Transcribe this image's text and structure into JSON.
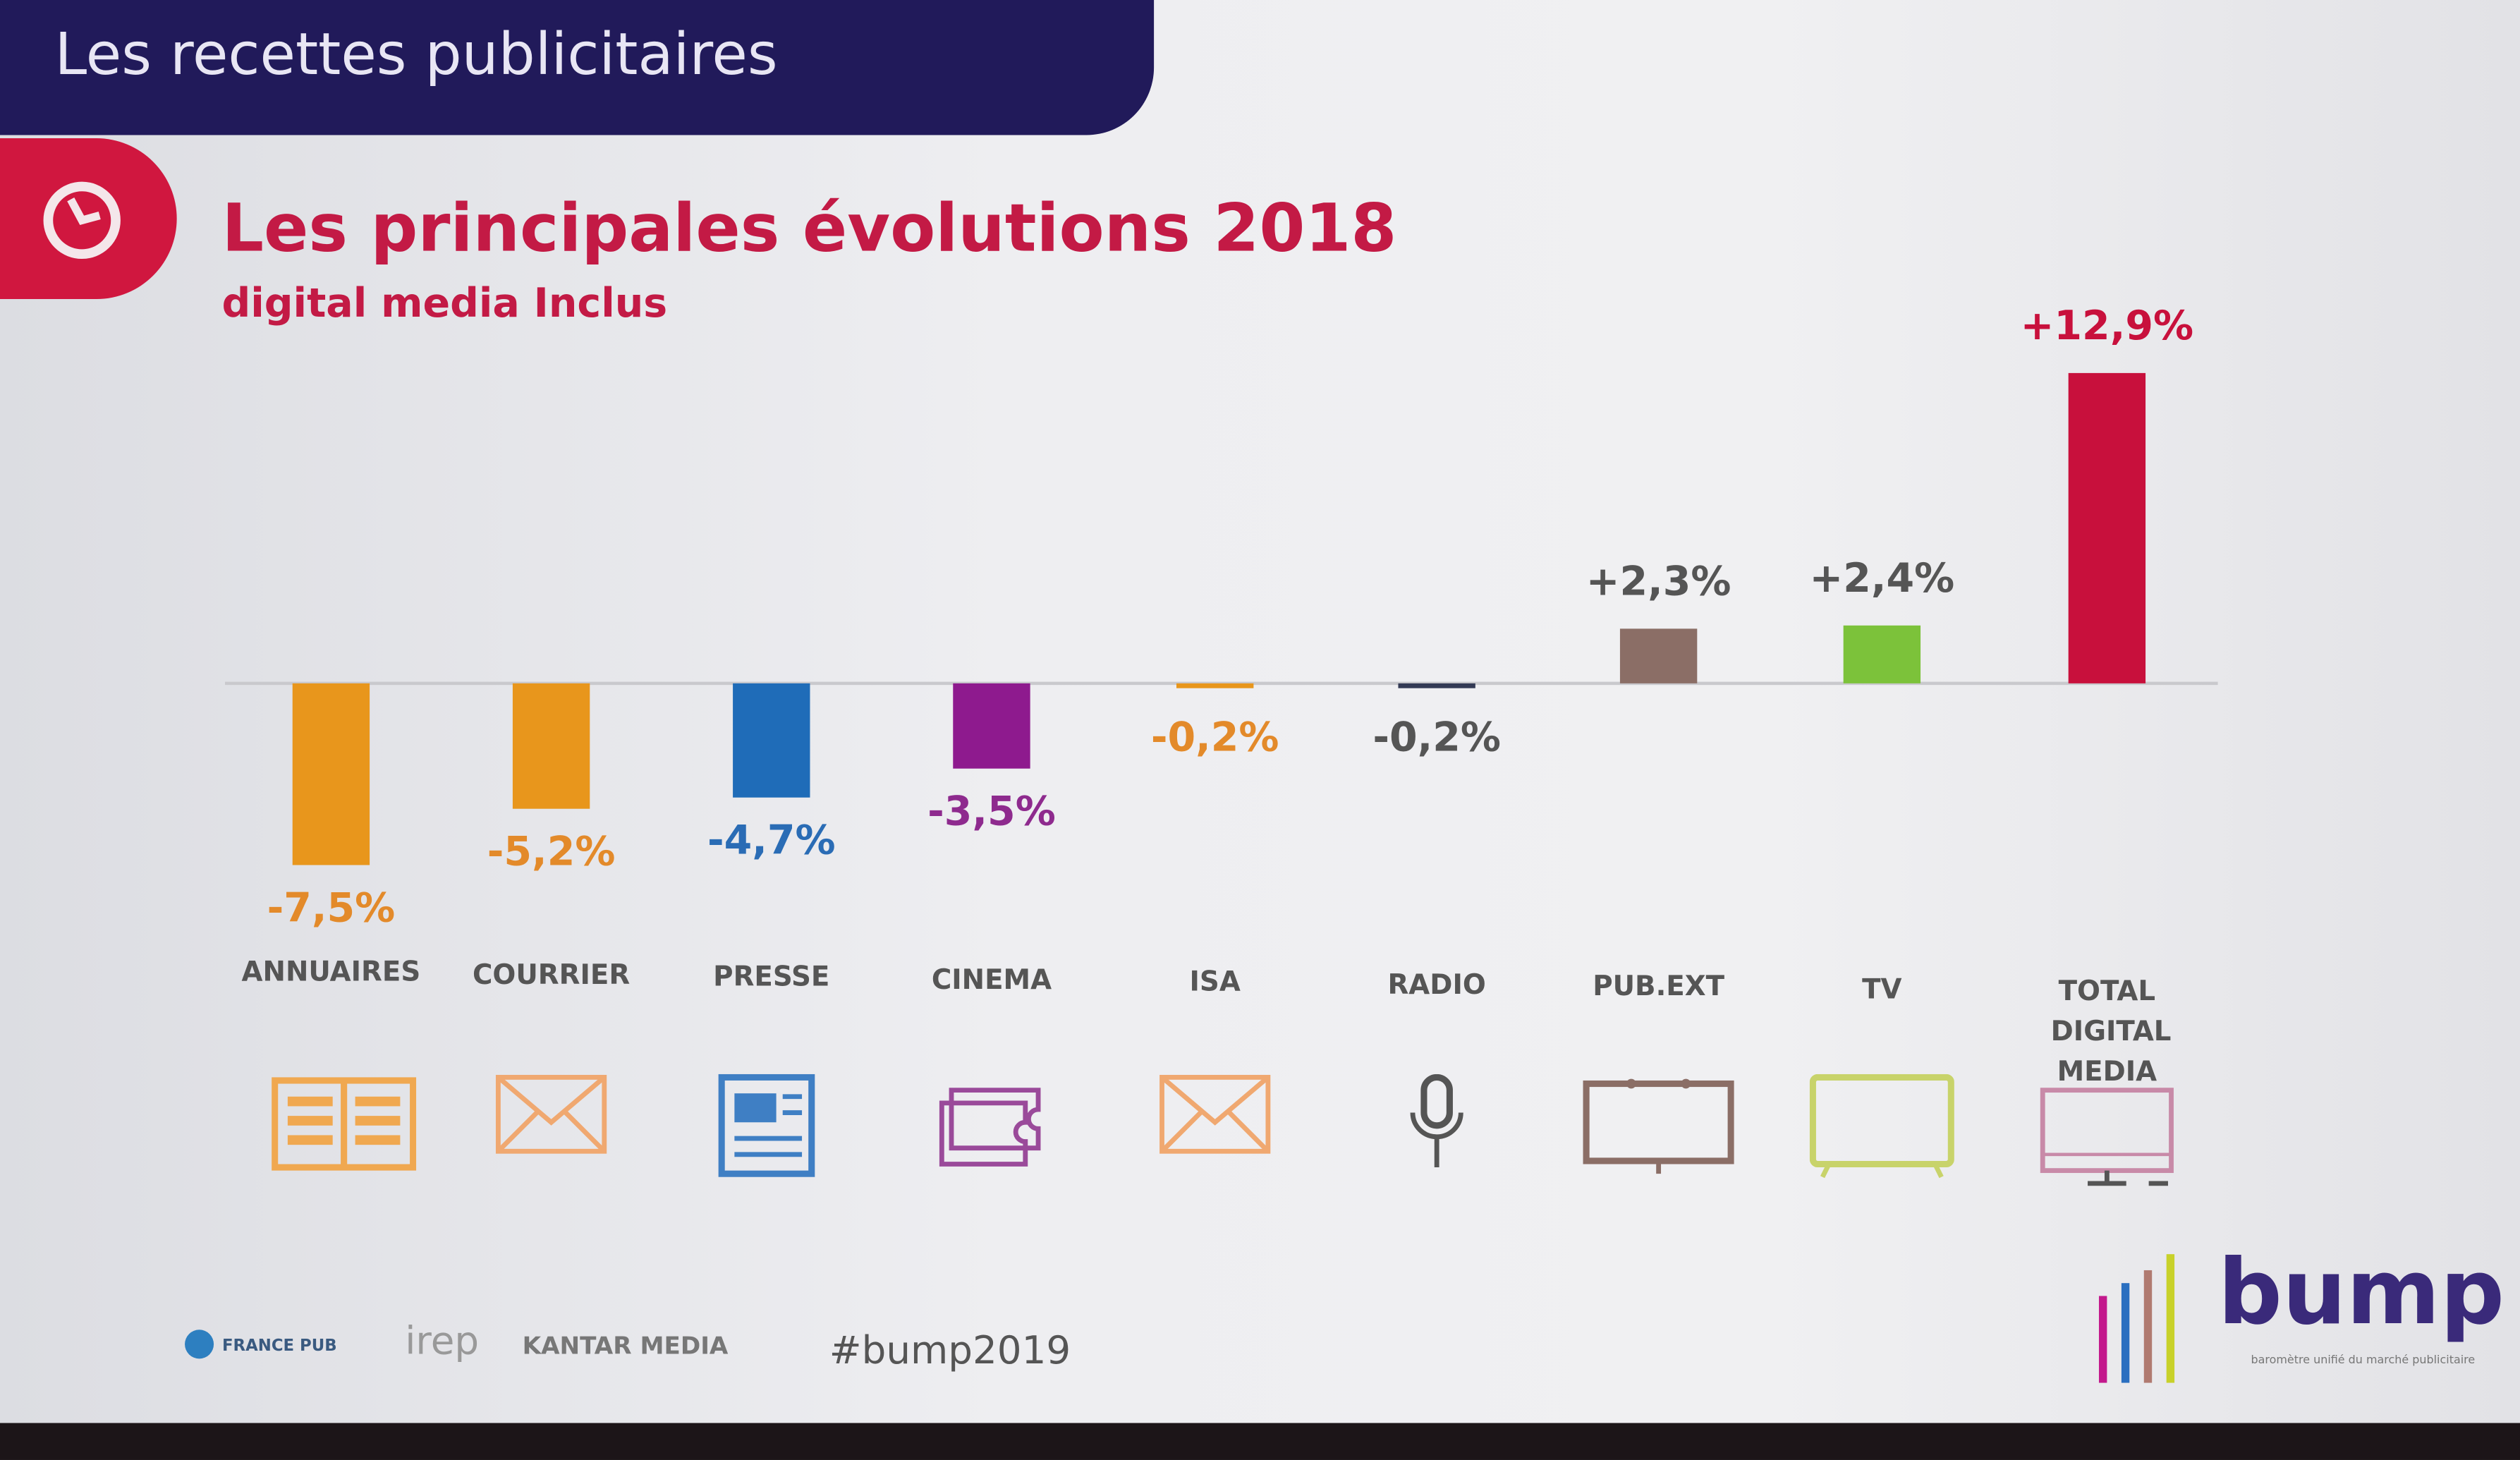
{
  "header": {
    "section": "Les recettes publicitaires",
    "icon": "clock-icon"
  },
  "chart_data": {
    "type": "bar",
    "title": "Les principales évolutions 2018",
    "subtitle": "digital media Inclus",
    "unit": "%",
    "categories": [
      "ANNUAIRES",
      "COURRIER",
      "PRESSE",
      "CINEMA",
      "ISA",
      "RADIO",
      "PUB.EXT",
      "TV",
      "TOTAL DIGITAL MEDIA"
    ],
    "values": [
      -7.5,
      -5.2,
      -4.7,
      -3.5,
      -0.2,
      -0.2,
      2.3,
      2.4,
      12.9
    ],
    "value_labels": [
      "-7,5%",
      "-5,2%",
      "-4,7%",
      "-3,5%",
      "-0,2%",
      "-0,2%",
      "+2,3%",
      "+2,4%",
      "+12,9%"
    ],
    "colors": [
      "#e8961c",
      "#e8961c",
      "#1f6cb8",
      "#8e1a8e",
      "#e8961c",
      "#333a55",
      "#8b6e66",
      "#7cc23a",
      "#c8103c"
    ],
    "icons": [
      "directory-book-icon",
      "mail-envelope-icon",
      "newspaper-icon",
      "cinema-ticket-icon",
      "mail-envelope-icon",
      "microphone-icon",
      "billboard-icon",
      "tv-icon",
      "computer-monitor-icon"
    ],
    "grid": false
  },
  "footer": {
    "logos": [
      "FRANCE PUB",
      "irep",
      "KANTAR MEDIA"
    ],
    "hashtag": "#bump2019",
    "brand": "bump",
    "brand_tagline": "baromètre unifié du marché publicitaire"
  }
}
